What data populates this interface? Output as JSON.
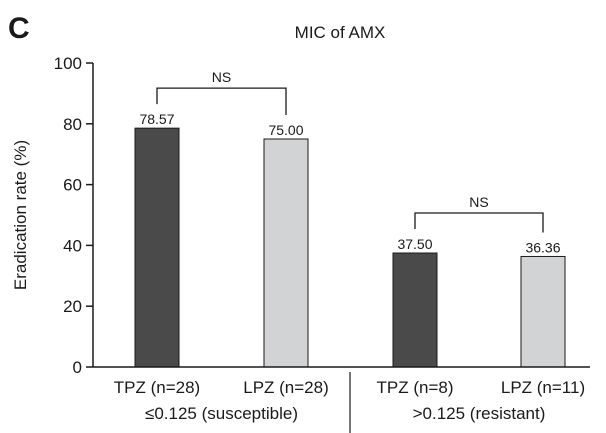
{
  "panel_label": "C",
  "chart_data": {
    "type": "bar",
    "title": "MIC of AMX",
    "ylabel": "Eradication rate (%)",
    "xlabel": "",
    "ylim": [
      0,
      100
    ],
    "yticks": [
      0,
      20,
      40,
      60,
      80,
      100
    ],
    "grid": false,
    "categories": [
      "TPZ (n=28)",
      "LPZ (n=28)",
      "TPZ (n=8)",
      "LPZ (n=11)"
    ],
    "values": [
      78.57,
      75.0,
      37.5,
      36.36
    ],
    "value_labels": [
      "78.57",
      "75.00",
      "37.50",
      "36.36"
    ],
    "bar_colors": [
      "#4a4a4a",
      "#d2d3d5",
      "#4a4a4a",
      "#d2d3d5"
    ],
    "groups": [
      {
        "label": "≤0.125 (susceptible)",
        "bars": [
          0,
          1
        ]
      },
      {
        "label": ">0.125 (resistant)",
        "bars": [
          2,
          3
        ]
      }
    ],
    "annotations": [
      {
        "text": "NS",
        "between": [
          0,
          1
        ]
      },
      {
        "text": "NS",
        "between": [
          2,
          3
        ]
      }
    ]
  }
}
